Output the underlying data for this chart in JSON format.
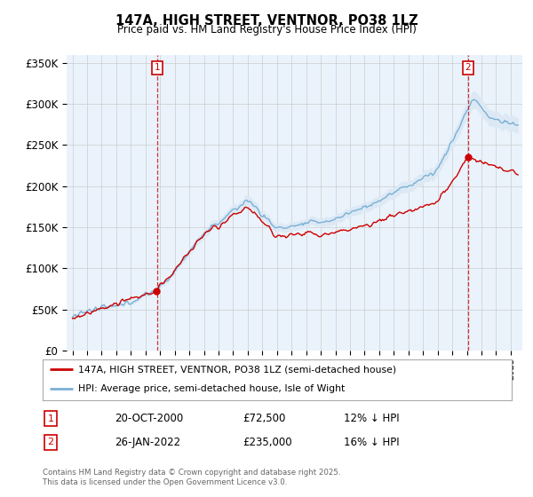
{
  "title": "147A, HIGH STREET, VENTNOR, PO38 1LZ",
  "subtitle": "Price paid vs. HM Land Registry's House Price Index (HPI)",
  "ylabel_ticks": [
    "£0",
    "£50K",
    "£100K",
    "£150K",
    "£200K",
    "£250K",
    "£300K",
    "£350K"
  ],
  "ytick_values": [
    0,
    50000,
    100000,
    150000,
    200000,
    250000,
    300000,
    350000
  ],
  "ylim": [
    0,
    360000
  ],
  "purchase1_year": 2000.8,
  "purchase1_price": 72500,
  "purchase2_year": 2022.07,
  "purchase2_price": 235000,
  "legend_line1": "147A, HIGH STREET, VENTNOR, PO38 1LZ (semi-detached house)",
  "legend_line2": "HPI: Average price, semi-detached house, Isle of Wight",
  "footer": "Contains HM Land Registry data © Crown copyright and database right 2025.\nThis data is licensed under the Open Government Licence v3.0.",
  "price_line_color": "#cc0000",
  "hpi_line_color": "#7ab0d4",
  "hpi_fill_color": "#dce9f5",
  "grid_color": "#cccccc",
  "background_color": "#ffffff",
  "annotation_box_color": "#cc0000",
  "chart_bg_color": "#eaf3fb"
}
